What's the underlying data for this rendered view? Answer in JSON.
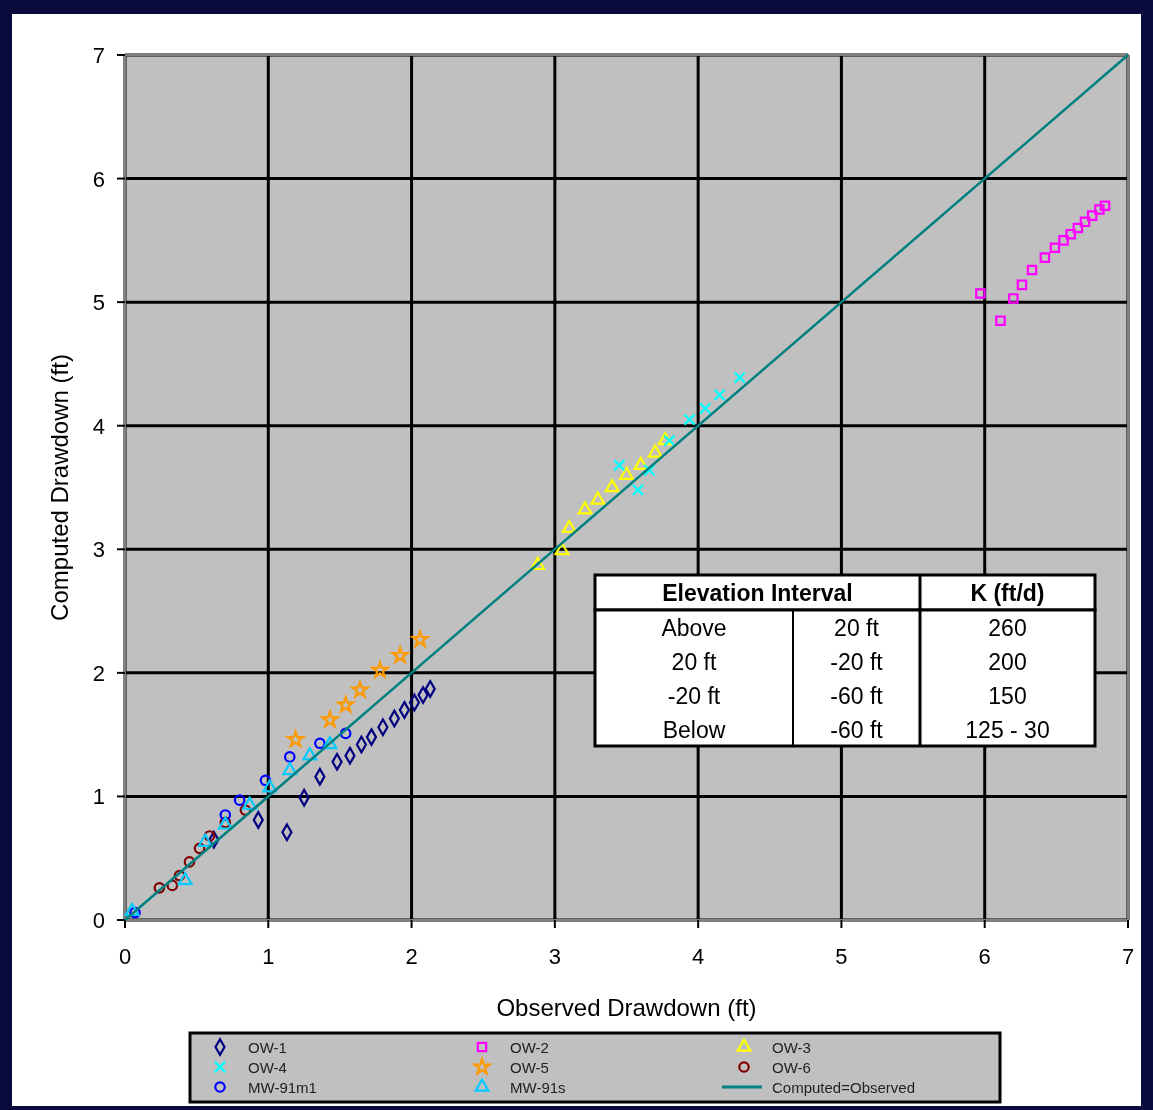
{
  "chart_data": {
    "type": "scatter",
    "xlabel": "Observed Drawdown (ft)",
    "ylabel": "Computed Drawdown (ft)",
    "xlim": [
      0,
      7
    ],
    "ylim": [
      0,
      7
    ],
    "xticks": [
      0,
      1,
      2,
      3,
      4,
      5,
      6,
      7
    ],
    "yticks": [
      0,
      1,
      2,
      3,
      4,
      5,
      6,
      7
    ],
    "grid": true,
    "legend": "bottom",
    "annotations": [
      "Elevation Interval",
      "K (ft/d)",
      "Above",
      "20 ft",
      "260",
      "20 ft",
      "-20 ft",
      "200",
      "-20 ft",
      "-60 ft",
      "150",
      "Below",
      "-60 ft",
      "125 - 30"
    ],
    "series": [
      {
        "name": "OW-1",
        "color": "#000080",
        "marker": "diamond",
        "x": [
          0.62,
          0.93,
          1.13,
          1.25,
          1.36,
          1.48,
          1.57,
          1.65,
          1.72,
          1.8,
          1.88,
          1.95,
          2.02,
          2.08,
          2.13
        ],
        "values": [
          0.65,
          0.81,
          0.71,
          0.99,
          1.16,
          1.28,
          1.33,
          1.42,
          1.48,
          1.56,
          1.63,
          1.7,
          1.76,
          1.82,
          1.87
        ]
      },
      {
        "name": "OW-2",
        "color": "#ff00ff",
        "marker": "square",
        "x": [
          5.97,
          6.11,
          6.2,
          6.26,
          6.33,
          6.42,
          6.49,
          6.55,
          6.6,
          6.65,
          6.7,
          6.75,
          6.8,
          6.84
        ],
        "values": [
          5.07,
          4.85,
          5.03,
          5.14,
          5.26,
          5.36,
          5.44,
          5.5,
          5.55,
          5.6,
          5.65,
          5.7,
          5.75,
          5.78
        ]
      },
      {
        "name": "OW-3",
        "color": "#ffff00",
        "marker": "triangle",
        "x": [
          2.88,
          3.05,
          3.1,
          3.21,
          3.3,
          3.4,
          3.5,
          3.6,
          3.7,
          3.77
        ],
        "values": [
          2.87,
          2.99,
          3.17,
          3.32,
          3.4,
          3.5,
          3.6,
          3.68,
          3.78,
          3.88
        ]
      },
      {
        "name": "OW-4",
        "color": "#00ffff",
        "marker": "cross",
        "x": [
          3.45,
          3.58,
          3.66,
          3.8,
          3.94,
          4.05,
          4.15,
          4.29
        ],
        "values": [
          3.68,
          3.48,
          3.64,
          3.88,
          4.05,
          4.14,
          4.25,
          4.39
        ]
      },
      {
        "name": "OW-5",
        "color": "#ff9900",
        "marker": "star",
        "x": [
          1.19,
          1.43,
          1.54,
          1.64,
          1.78,
          1.92,
          2.06
        ],
        "values": [
          1.46,
          1.62,
          1.74,
          1.86,
          2.02,
          2.14,
          2.27
        ]
      },
      {
        "name": "OW-6",
        "color": "#800000",
        "marker": "circle",
        "x": [
          0.24,
          0.33,
          0.38,
          0.45,
          0.52,
          0.59,
          0.7,
          0.84
        ],
        "values": [
          0.26,
          0.28,
          0.36,
          0.47,
          0.58,
          0.68,
          0.79,
          0.89
        ]
      },
      {
        "name": "MW-91m1",
        "color": "#0000ff",
        "marker": "circle",
        "x": [
          0.07,
          0.7,
          0.8,
          0.98,
          1.15,
          1.36,
          1.54
        ],
        "values": [
          0.06,
          0.85,
          0.97,
          1.13,
          1.32,
          1.43,
          1.51
        ]
      },
      {
        "name": "MW-91s",
        "color": "#00ccff",
        "marker": "triangle",
        "x": [
          0.05,
          0.42,
          0.56,
          0.7,
          0.87,
          1.01,
          1.15,
          1.29,
          1.43
        ],
        "values": [
          0.07,
          0.32,
          0.63,
          0.77,
          0.93,
          1.07,
          1.21,
          1.33,
          1.42
        ]
      },
      {
        "name": "Computed=Observed",
        "type": "line",
        "color": "#008080",
        "marker": "none",
        "x": [
          0,
          7
        ],
        "values": [
          0,
          7
        ]
      }
    ]
  }
}
